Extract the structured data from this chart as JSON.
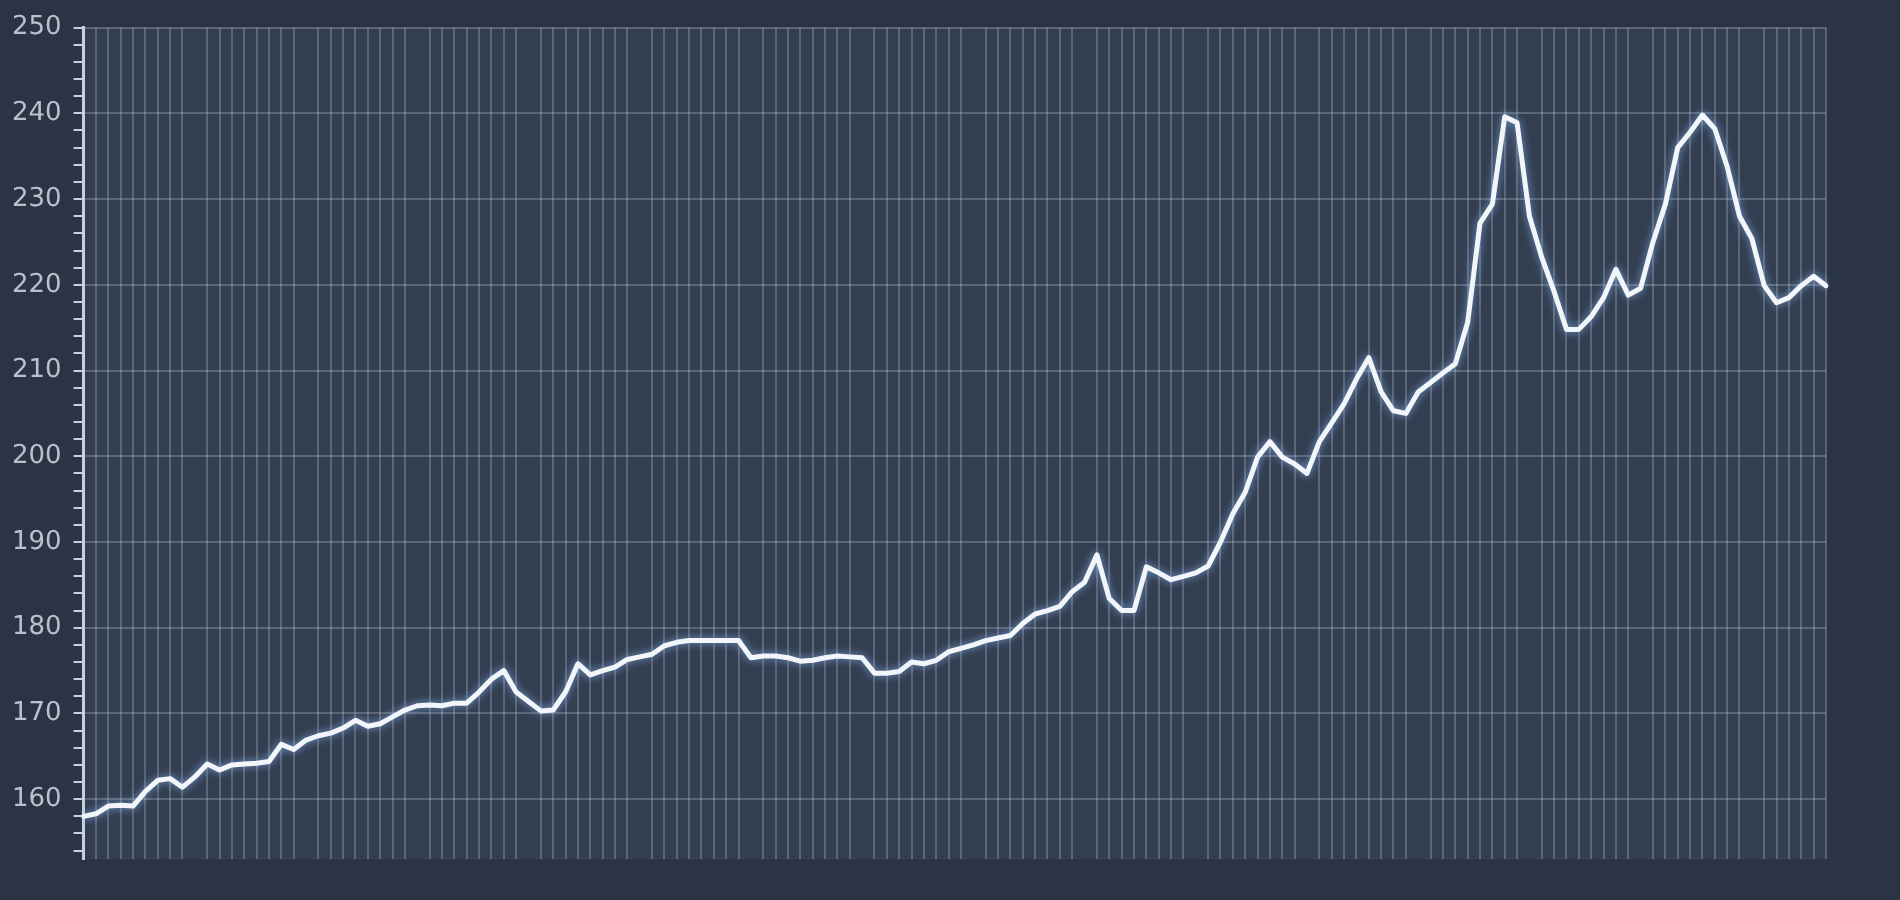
{
  "chart_data": {
    "type": "line",
    "categories": [
      null,
      null,
      null,
      null,
      null,
      null,
      null,
      null,
      null,
      null,
      null,
      null,
      null,
      null,
      null,
      null,
      null,
      null,
      null,
      null,
      null,
      null,
      null,
      null,
      null,
      null,
      null,
      null,
      null,
      null,
      null,
      null,
      null,
      null,
      null,
      null,
      null,
      null,
      null,
      null,
      null,
      null,
      null,
      null,
      null,
      null,
      null,
      null,
      null,
      null,
      null,
      null,
      null,
      null,
      null,
      null,
      null,
      null,
      null,
      null,
      null,
      null,
      null,
      null,
      null,
      null,
      null,
      null,
      null,
      null,
      null,
      null,
      null,
      null,
      null,
      null,
      null,
      null,
      null,
      null,
      null,
      null,
      null,
      null,
      null,
      null,
      null,
      null,
      null,
      null,
      null,
      null,
      null,
      null,
      null,
      null,
      null,
      null,
      null,
      null,
      null,
      null,
      null,
      null,
      null,
      null,
      null,
      null,
      null,
      null,
      null,
      null,
      null,
      null,
      null,
      null,
      null,
      null,
      null,
      null,
      null,
      null,
      null,
      null,
      null,
      null,
      null,
      null,
      null,
      null,
      null,
      null,
      null,
      null,
      null,
      null,
      null,
      null,
      null,
      null,
      null,
      null
    ],
    "series": [
      {
        "color": "#f2f6fa",
        "values": [
          158.0,
          158.3,
          159.2,
          159.3,
          159.2,
          160.9,
          162.2,
          162.4,
          161.4,
          162.6,
          164.1,
          163.4,
          164.0,
          164.1,
          164.2,
          164.4,
          166.4,
          165.8,
          166.9,
          167.4,
          167.7,
          168.3,
          169.2,
          168.5,
          168.8,
          169.6,
          170.4,
          170.9,
          171.0,
          170.9,
          171.2,
          171.2,
          172.5,
          174.0,
          175.0,
          172.5,
          171.4,
          170.3,
          170.4,
          172.5,
          175.8,
          174.5,
          175.0,
          175.4,
          176.3,
          176.6,
          176.9,
          177.9,
          178.3,
          178.5,
          178.5,
          178.5,
          178.5,
          178.5,
          176.5,
          176.7,
          176.7,
          176.5,
          176.1,
          176.2,
          176.5,
          176.7,
          176.6,
          176.5,
          174.7,
          174.7,
          174.9,
          176.0,
          175.8,
          176.2,
          177.2,
          177.6,
          178.0,
          178.5,
          178.8,
          179.1,
          180.5,
          181.6,
          182.0,
          182.5,
          184.2,
          185.3,
          188.5,
          183.4,
          182.0,
          182.0,
          187.1,
          186.4,
          185.6,
          186.0,
          186.4,
          187.2,
          190.0,
          193.3,
          195.8,
          199.9,
          201.7,
          199.9,
          199.1,
          198.0,
          201.7,
          203.9,
          206.1,
          209.0,
          211.5,
          207.5,
          205.3,
          205.0,
          207.5,
          208.6,
          209.7,
          210.8,
          215.6,
          227.2,
          229.4,
          239.6,
          238.9,
          228.0,
          223.2,
          219.2,
          214.8,
          214.8,
          216.3,
          218.5,
          221.8,
          218.8,
          219.6,
          225.0,
          229.4,
          236.0,
          237.8,
          239.8,
          238.2,
          233.8,
          228.0,
          225.4,
          219.9,
          217.9,
          218.5,
          219.9,
          221.0,
          219.9
        ]
      }
    ],
    "ylim": [
      153,
      250
    ],
    "yticks": [
      {
        "value": 154,
        "label": null
      },
      {
        "value": 156,
        "label": null
      },
      {
        "value": 158,
        "label": null
      },
      160,
      {
        "value": 162,
        "label": null
      },
      {
        "value": 164,
        "label": null
      },
      {
        "value": 166,
        "label": null
      },
      {
        "value": 168,
        "label": null
      },
      170,
      {
        "value": 172,
        "label": null
      },
      {
        "value": 174,
        "label": null
      },
      {
        "value": 176,
        "label": null
      },
      {
        "value": 178,
        "label": null
      },
      180,
      {
        "value": 182,
        "label": null
      },
      {
        "value": 184,
        "label": null
      },
      {
        "value": 186,
        "label": null
      },
      {
        "value": 188,
        "label": null
      },
      190,
      {
        "value": 192,
        "label": null
      },
      {
        "value": 194,
        "label": null
      },
      {
        "value": 196,
        "label": null
      },
      {
        "value": 198,
        "label": null
      },
      200,
      {
        "value": 202,
        "label": null
      },
      {
        "value": 204,
        "label": null
      },
      {
        "value": 206,
        "label": null
      },
      {
        "value": 208,
        "label": null
      },
      210,
      {
        "value": 212,
        "label": null
      },
      {
        "value": 214,
        "label": null
      },
      {
        "value": 216,
        "label": null
      },
      {
        "value": 218,
        "label": null
      },
      220,
      {
        "value": 222,
        "label": null
      },
      {
        "value": 224,
        "label": null
      },
      {
        "value": 226,
        "label": null
      },
      {
        "value": 228,
        "label": null
      },
      230,
      {
        "value": 232,
        "label": null
      },
      {
        "value": 234,
        "label": null
      },
      {
        "value": 236,
        "label": null
      },
      {
        "value": 238,
        "label": null
      },
      240,
      {
        "value": 242,
        "label": null
      },
      {
        "value": 244,
        "label": null
      },
      {
        "value": 246,
        "label": null
      },
      {
        "value": 248,
        "label": null
      },
      250
    ],
    "grid": true,
    "marker": "none",
    "line_style": "solid"
  }
}
